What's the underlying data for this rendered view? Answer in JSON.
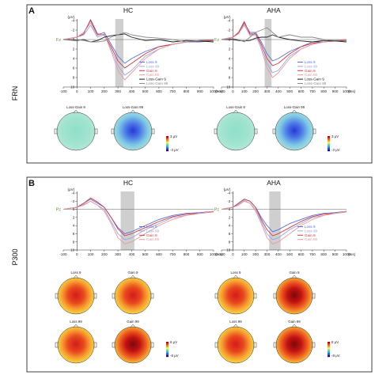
{
  "figure": {
    "panels": [
      {
        "letter": "A",
        "row_label": "FRN",
        "plots": [
          {
            "title": "HC",
            "channel": "Fz"
          },
          {
            "title": "AHA",
            "channel": "Fz"
          }
        ],
        "legend": [
          "Loss 9",
          "Loss 99",
          "Gain 9",
          "Gain 99",
          "Loss-Gain 9",
          "Loss-Gain 99"
        ],
        "maps": [
          "Loss-Gain 9",
          "Loss-Gain 99"
        ],
        "scale": {
          "top": "3 μV",
          "bottom": "-3 μV"
        }
      },
      {
        "letter": "B",
        "row_label": "P300",
        "plots": [
          {
            "title": "HC",
            "channel": "Pz"
          },
          {
            "title": "AHA",
            "channel": "Pz"
          }
        ],
        "legend": [
          "Loss 9",
          "Loss 99",
          "Gain 9",
          "Gain 99"
        ],
        "maps": [
          "Loss 9",
          "Gain 9",
          "Loss 99",
          "Gain 99"
        ],
        "scale": {
          "top": "8 μV",
          "bottom": "-8 μV"
        }
      }
    ],
    "axis": {
      "y_unit": "(μV)",
      "x_unit": "(ms)",
      "y_ticks": [
        "-4",
        "-2",
        "0",
        "2",
        "4",
        "6",
        "8",
        "10"
      ],
      "x_ticks": [
        "-100",
        "0",
        "100",
        "200",
        "300",
        "400",
        "500",
        "600",
        "700",
        "800",
        "900",
        "1000"
      ]
    },
    "colors": {
      "loss9": "#5b6fd6",
      "loss99": "#9aa3e8",
      "gain9": "#d23a3a",
      "gain99": "#e89a9a",
      "lossgain9": "#1e1e1e",
      "lossgain99": "#8a8a8a",
      "window": "#cfcfcf"
    }
  },
  "chart_data": [
    {
      "type": "line",
      "panel": "A",
      "title": "HC",
      "ylabel": "(μV)",
      "xlabel": "(ms)",
      "ylim": [
        -4,
        10
      ],
      "y_inverted": true,
      "xlim": [
        -100,
        1000
      ],
      "x": [
        -100,
        0,
        50,
        100,
        150,
        200,
        250,
        300,
        350,
        400,
        500,
        600,
        700,
        800,
        900,
        1000
      ],
      "series": [
        {
          "name": "Loss 9",
          "values": [
            0,
            -0.5,
            -1.5,
            -4.0,
            -1.0,
            -1.5,
            1.0,
            3.5,
            5.0,
            4.0,
            2.5,
            1.5,
            1.0,
            0.5,
            0.5,
            0.2
          ]
        },
        {
          "name": "Loss 99",
          "values": [
            0,
            -0.5,
            -1.0,
            -3.0,
            -0.5,
            -1.0,
            2.0,
            5.5,
            7.5,
            6.5,
            3.5,
            2.0,
            1.0,
            0.5,
            0.2,
            0.0
          ]
        },
        {
          "name": "Gain 9",
          "values": [
            0,
            -0.5,
            -1.2,
            -4.2,
            -1.2,
            -1.0,
            1.5,
            4.5,
            6.0,
            5.0,
            3.0,
            1.5,
            1.0,
            0.5,
            0.3,
            0.2
          ]
        },
        {
          "name": "Gain 99",
          "values": [
            0,
            -0.5,
            -1.5,
            -3.5,
            -0.8,
            -1.2,
            2.5,
            6.5,
            8.5,
            7.0,
            4.0,
            2.0,
            1.0,
            0.5,
            0.2,
            0.0
          ]
        },
        {
          "name": "Loss-Gain 9",
          "values": [
            0,
            0.2,
            0.0,
            0.5,
            0.2,
            -0.5,
            -0.8,
            -1.0,
            -1.2,
            -0.5,
            0.2,
            0.0,
            0.5,
            0.2,
            0.3,
            0.5
          ]
        },
        {
          "name": "Loss-Gain 99",
          "values": [
            0,
            0.0,
            0.2,
            0.5,
            0.5,
            0.3,
            -0.5,
            -1.0,
            -1.5,
            -1.0,
            -0.5,
            -0.3,
            0.0,
            0.5,
            0.2,
            0.0
          ]
        }
      ],
      "shaded_window_ms": [
        280,
        340
      ]
    },
    {
      "type": "line",
      "panel": "A",
      "title": "AHA",
      "ylabel": "(μV)",
      "xlabel": "(ms)",
      "ylim": [
        -4,
        10
      ],
      "y_inverted": true,
      "xlim": [
        -100,
        1000
      ],
      "x": [
        -100,
        0,
        50,
        100,
        150,
        200,
        250,
        300,
        350,
        400,
        500,
        600,
        700,
        800,
        900,
        1000
      ],
      "series": [
        {
          "name": "Loss 9",
          "values": [
            0,
            -0.5,
            -1.5,
            -3.5,
            -1.5,
            -1.5,
            0.5,
            3.0,
            4.5,
            4.0,
            2.5,
            1.5,
            0.5,
            0.5,
            0.3,
            0.2
          ]
        },
        {
          "name": "Loss 99",
          "values": [
            0,
            -0.5,
            -1.2,
            -3.0,
            -1.0,
            -1.2,
            1.5,
            5.0,
            7.0,
            6.5,
            3.5,
            2.0,
            1.0,
            0.5,
            0.2,
            0.0
          ]
        },
        {
          "name": "Gain 9",
          "values": [
            0,
            -0.5,
            -1.5,
            -3.8,
            -1.2,
            -1.2,
            1.0,
            4.0,
            5.5,
            5.0,
            3.0,
            1.5,
            0.8,
            0.5,
            0.3,
            0.2
          ]
        },
        {
          "name": "Gain 99",
          "values": [
            0,
            -0.5,
            -1.2,
            -3.2,
            -0.8,
            -1.0,
            2.0,
            6.0,
            8.0,
            7.0,
            4.0,
            2.0,
            1.0,
            0.5,
            0.2,
            0.0
          ]
        },
        {
          "name": "Loss-Gain 9",
          "values": [
            0,
            0.0,
            0.2,
            0.3,
            0.2,
            -0.3,
            -0.5,
            -0.5,
            -1.0,
            -0.5,
            0.0,
            0.3,
            0.5,
            0.2,
            0.3,
            0.5
          ]
        },
        {
          "name": "Loss-Gain 99",
          "values": [
            0,
            -0.2,
            0.0,
            0.5,
            -0.5,
            -1.5,
            -2.0,
            -2.5,
            -1.5,
            -0.5,
            -1.0,
            -0.5,
            -0.5,
            0.0,
            0.2,
            0.0
          ]
        }
      ],
      "shaded_window_ms": [
        280,
        340
      ]
    },
    {
      "type": "line",
      "panel": "B",
      "title": "HC",
      "ylabel": "(μV)",
      "xlabel": "(ms)",
      "ylim": [
        -4,
        10
      ],
      "y_inverted": true,
      "xlim": [
        -100,
        1000
      ],
      "x": [
        -100,
        0,
        50,
        100,
        150,
        200,
        250,
        300,
        350,
        400,
        500,
        600,
        700,
        800,
        900,
        1000
      ],
      "series": [
        {
          "name": "Loss 9",
          "values": [
            0,
            -0.5,
            -1.5,
            -2.5,
            -1.5,
            -0.5,
            2.0,
            4.5,
            6.0,
            5.5,
            4.0,
            2.5,
            1.5,
            1.0,
            0.8,
            0.5
          ]
        },
        {
          "name": "Loss 99",
          "values": [
            0,
            -0.5,
            -1.2,
            -2.0,
            -1.0,
            0.0,
            3.0,
            6.0,
            7.5,
            7.0,
            5.0,
            3.5,
            2.0,
            1.5,
            1.0,
            0.5
          ]
        },
        {
          "name": "Gain 9",
          "values": [
            0,
            -0.5,
            -1.5,
            -2.8,
            -1.8,
            -0.5,
            2.0,
            4.8,
            6.5,
            6.0,
            4.5,
            3.0,
            1.8,
            1.2,
            1.0,
            0.6
          ]
        },
        {
          "name": "Gain 99",
          "values": [
            0,
            -0.5,
            -1.0,
            -2.0,
            -1.0,
            0.5,
            3.5,
            7.0,
            8.5,
            8.0,
            6.0,
            4.0,
            2.5,
            1.5,
            1.0,
            0.5
          ]
        }
      ],
      "shaded_window_ms": [
        320,
        420
      ]
    },
    {
      "type": "line",
      "panel": "B",
      "title": "AHA",
      "ylabel": "(μV)",
      "xlabel": "(ms)",
      "ylim": [
        -4,
        10
      ],
      "y_inverted": true,
      "xlim": [
        -100,
        1000
      ],
      "x": [
        -100,
        0,
        50,
        100,
        150,
        200,
        250,
        300,
        350,
        400,
        500,
        600,
        700,
        800,
        900,
        1000
      ],
      "series": [
        {
          "name": "Loss 9",
          "values": [
            0,
            -0.5,
            -1.5,
            -2.5,
            -2.0,
            -0.5,
            2.0,
            4.0,
            5.5,
            5.0,
            3.5,
            2.5,
            1.5,
            1.0,
            0.8,
            0.5
          ]
        },
        {
          "name": "Loss 99",
          "values": [
            0,
            -0.5,
            -1.2,
            -2.2,
            -1.5,
            0.0,
            3.0,
            6.0,
            7.5,
            7.0,
            5.0,
            3.5,
            2.0,
            1.5,
            1.0,
            0.5
          ]
        },
        {
          "name": "Gain 9",
          "values": [
            0,
            -0.5,
            -1.5,
            -2.5,
            -2.0,
            -0.5,
            2.5,
            5.0,
            6.5,
            6.0,
            4.5,
            3.0,
            1.8,
            1.2,
            1.0,
            0.6
          ]
        },
        {
          "name": "Gain 99",
          "values": [
            0,
            -0.5,
            -1.0,
            -2.0,
            -1.5,
            0.5,
            3.5,
            7.0,
            8.5,
            8.0,
            6.0,
            4.0,
            2.5,
            1.5,
            1.0,
            0.5
          ]
        }
      ],
      "shaded_window_ms": [
        320,
        420
      ]
    }
  ]
}
